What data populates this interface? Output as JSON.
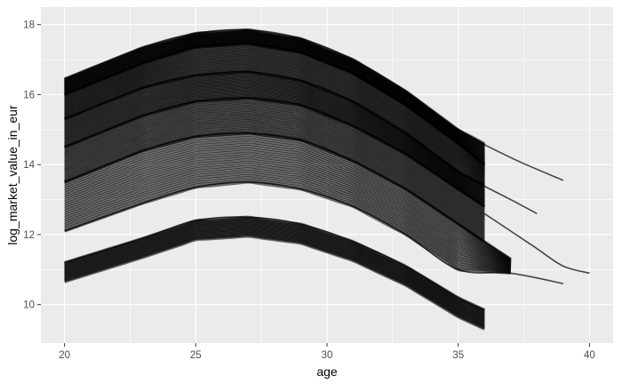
{
  "chart_data": {
    "type": "line",
    "title": "",
    "xlabel": "age",
    "ylabel": "log_market_value_in_eur",
    "xlim": [
      19.1,
      40.9
    ],
    "ylim": [
      8.9,
      18.5
    ],
    "x_ticks": [
      20,
      25,
      30,
      35,
      40
    ],
    "y_ticks": [
      10,
      12,
      14,
      16,
      18
    ],
    "x_tick_labels": [
      "20",
      "25",
      "30",
      "35",
      "40"
    ],
    "y_tick_labels": [
      "10",
      "12",
      "14",
      "16",
      "18"
    ],
    "grid": true,
    "legend": "none",
    "colors": {
      "panel_background": "#ebebeb",
      "grid_major": "#ffffff",
      "line": "#000000"
    },
    "series": [
      {
        "description_label": "",
        "x": [
          20,
          23,
          25,
          27,
          29,
          31,
          33,
          35,
          37,
          39
        ],
        "y": [
          16.45,
          17.35,
          17.75,
          17.85,
          17.6,
          17.0,
          16.1,
          15.0,
          14.2,
          13.55
        ]
      },
      {
        "description_label": "",
        "x": [
          20,
          23,
          25,
          27,
          29,
          31,
          33,
          35,
          36
        ],
        "y": [
          16.0,
          16.9,
          17.35,
          17.45,
          17.2,
          16.6,
          15.7,
          14.6,
          14.0
        ]
      },
      {
        "description_label": "",
        "x": [
          20,
          23,
          25,
          27,
          29,
          31,
          33,
          35,
          37,
          38
        ],
        "y": [
          15.3,
          16.2,
          16.55,
          16.65,
          16.4,
          15.8,
          14.9,
          13.8,
          13.0,
          12.6
        ]
      },
      {
        "description_label": "",
        "x": [
          20,
          23,
          25,
          27,
          29,
          31,
          33,
          35,
          36
        ],
        "y": [
          14.5,
          15.4,
          15.8,
          15.9,
          15.7,
          15.1,
          14.3,
          13.3,
          12.8
        ]
      },
      {
        "description_label": "",
        "x": [
          20,
          23,
          25,
          27,
          29,
          31,
          33,
          35,
          37
        ],
        "y": [
          13.5,
          14.4,
          14.8,
          14.9,
          14.7,
          14.1,
          13.3,
          12.3,
          11.3
        ]
      },
      {
        "description_label": "",
        "x": [
          20,
          23,
          25,
          27,
          29,
          31,
          33,
          35,
          37,
          39
        ],
        "y": [
          12.1,
          12.9,
          13.35,
          13.5,
          13.3,
          12.8,
          12.0,
          11.0,
          10.9,
          10.6
        ]
      },
      {
        "description_label": "",
        "x": [
          20,
          23,
          25,
          27,
          29,
          31,
          33,
          35,
          36
        ],
        "y": [
          11.2,
          11.9,
          12.4,
          12.5,
          12.3,
          11.8,
          11.1,
          10.2,
          9.85
        ]
      },
      {
        "description_label": "",
        "x": [
          36,
          37,
          38,
          39,
          40
        ],
        "y": [
          12.6,
          12.1,
          11.6,
          11.1,
          10.9
        ]
      }
    ]
  }
}
